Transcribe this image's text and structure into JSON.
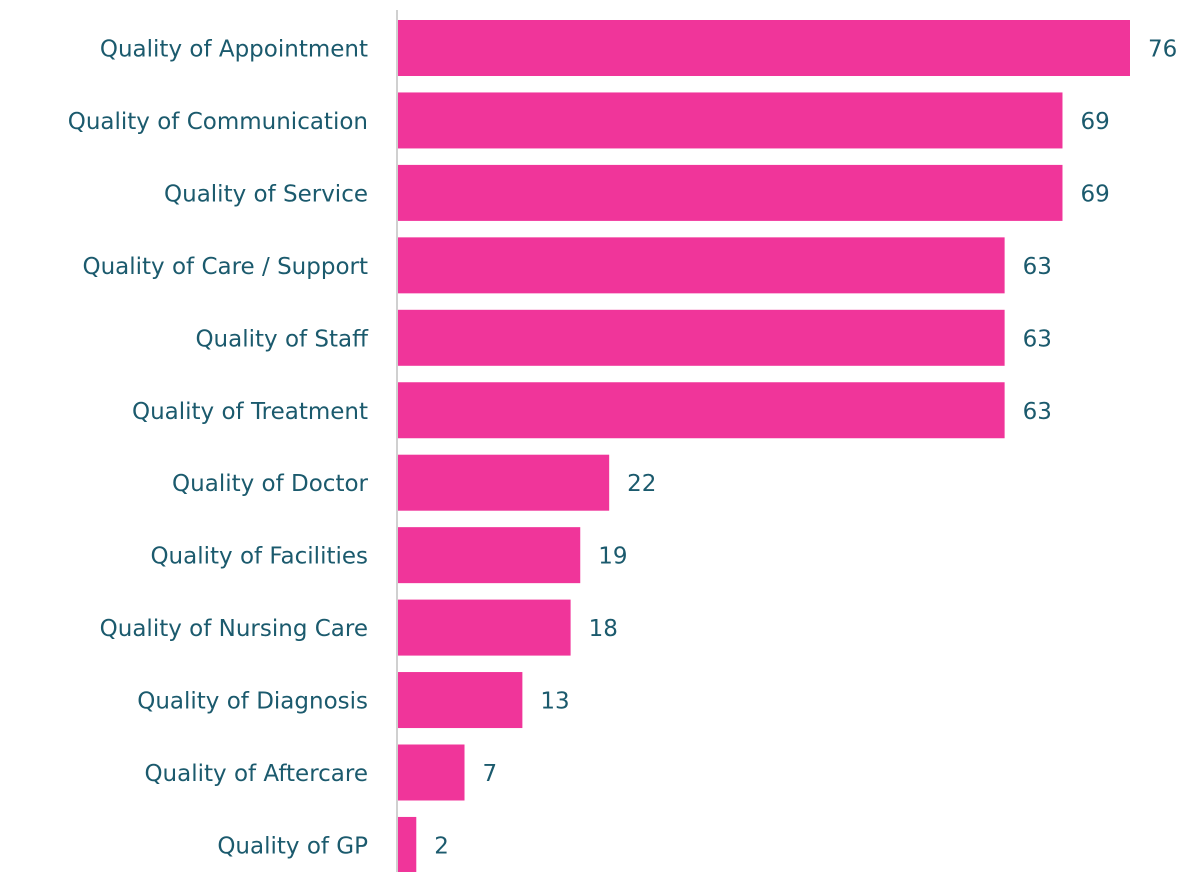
{
  "chart_data": {
    "type": "barh",
    "categories": [
      "Quality of Appointment",
      "Quality of Communication",
      "Quality of Service",
      "Quality of Care / Support",
      "Quality of Staff",
      "Quality of Treatment",
      "Quality of Doctor",
      "Quality of Facilities",
      "Quality of Nursing Care",
      "Quality of Diagnosis",
      "Quality of Aftercare",
      "Quality of GP"
    ],
    "values": [
      76,
      69,
      69,
      63,
      63,
      63,
      22,
      19,
      18,
      13,
      7,
      2
    ],
    "color": "#f0359a",
    "xlim": [
      0,
      76
    ]
  }
}
